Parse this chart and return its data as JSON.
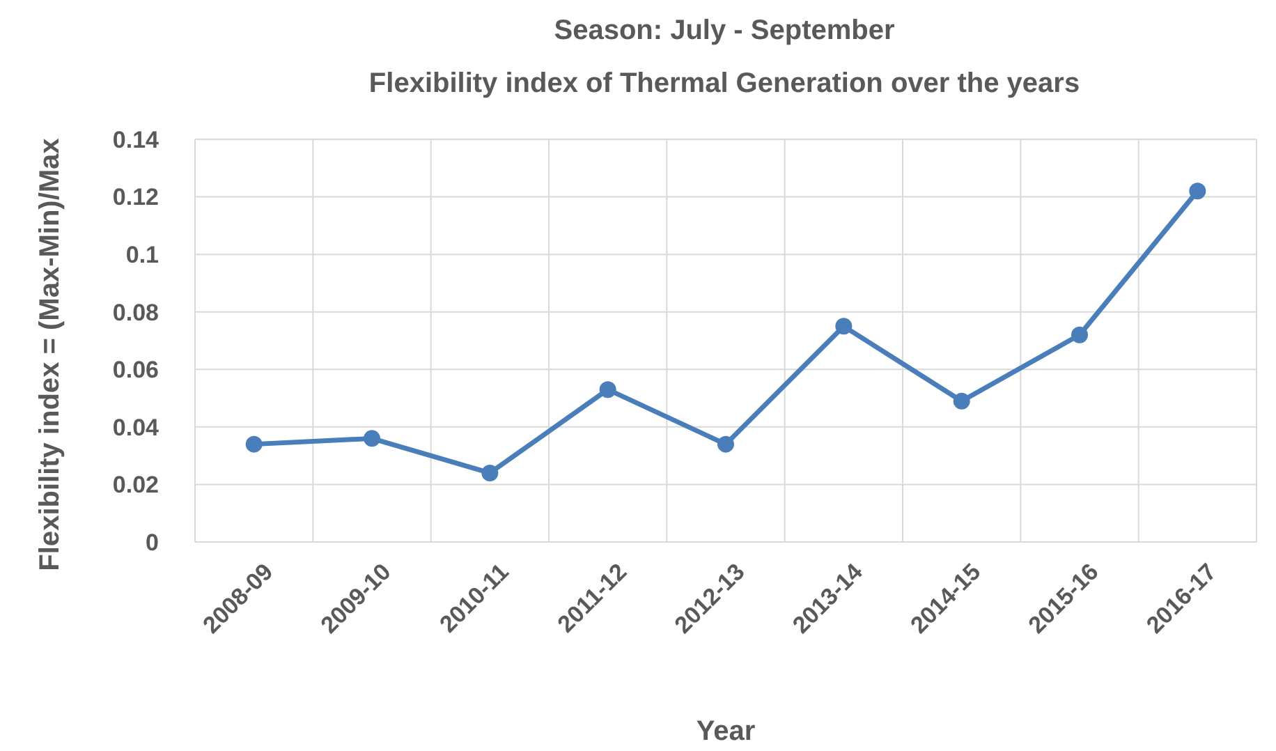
{
  "chart_data": {
    "type": "line",
    "title": "Season: July - September",
    "subtitle": "Flexibility index of Thermal Generation over the years",
    "xlabel": "Year",
    "ylabel": "Flexibility index = (Max-Min)/Max",
    "categories": [
      "2008-09",
      "2009-10",
      "2010-11",
      "2011-12",
      "2012-13",
      "2013-14",
      "2014-15",
      "2015-16",
      "2016-17"
    ],
    "series": [
      {
        "color": "#4a7ebb",
        "values": [
          0.034,
          0.036,
          0.024,
          0.053,
          0.034,
          0.075,
          0.049,
          0.072,
          0.122
        ]
      }
    ],
    "ylim": [
      0,
      0.14
    ],
    "yticks": [
      0,
      0.02,
      0.04,
      0.06,
      0.08,
      0.1,
      0.12,
      0.14
    ],
    "grid": true,
    "marker": "circle",
    "line_style": "solid"
  }
}
